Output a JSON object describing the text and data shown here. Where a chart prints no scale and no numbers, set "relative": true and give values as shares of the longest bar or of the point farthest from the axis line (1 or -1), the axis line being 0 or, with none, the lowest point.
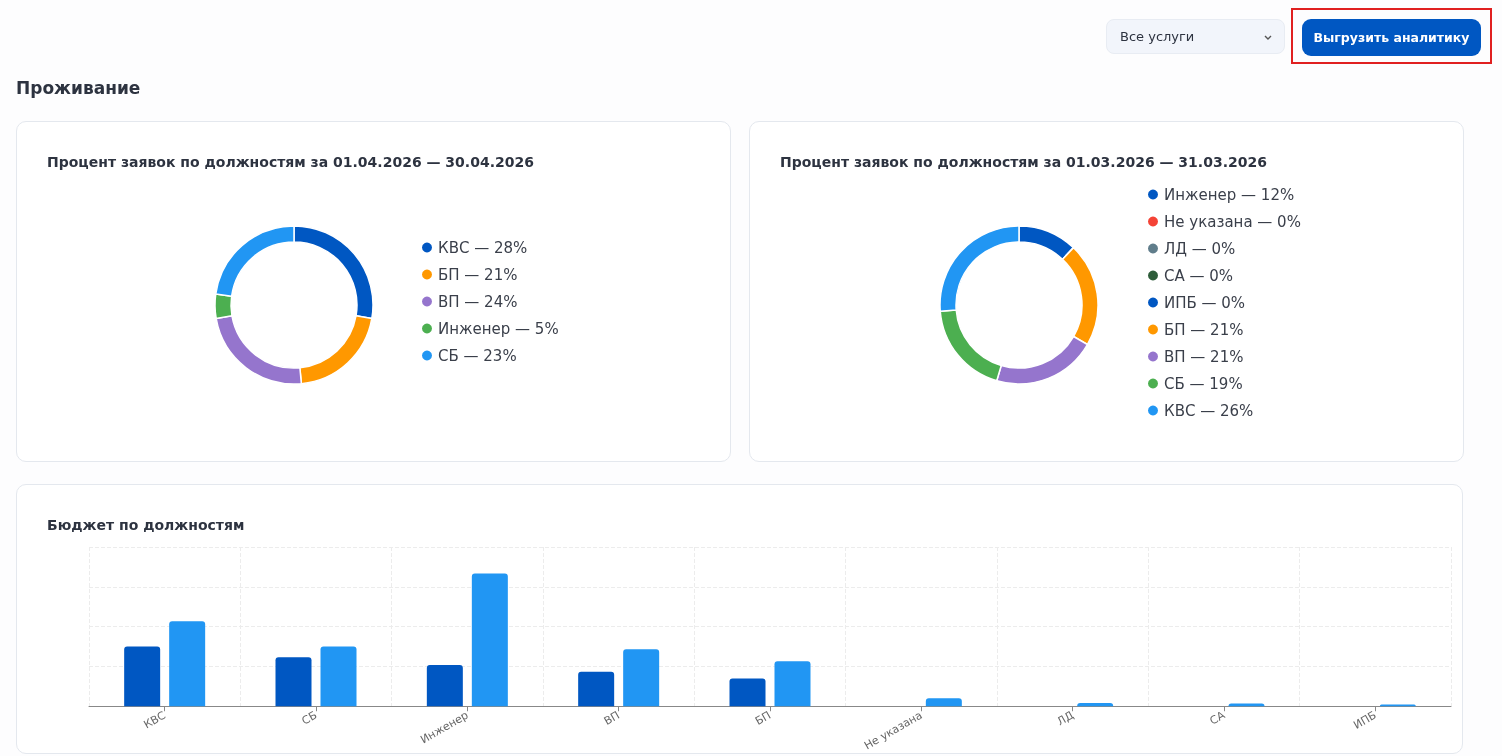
{
  "chart_data": [
    {
      "type": "other",
      "title": "Проживание",
      "annotations": [
        "Все услуги",
        "Выгрузить аналитику"
      ]
    },
    {
      "type": "donut",
      "title": "Процент заявок по должностям за 01.04.2026 — 30.04.2026",
      "legend": "right",
      "categories": [
        "КВС — 28%",
        "БП — 21%",
        "ВП — 24%",
        "Инженер — 5%",
        "СБ — 23%"
      ],
      "values": [
        28,
        21,
        24,
        5,
        23
      ],
      "colors": [
        "#0057c2",
        "#ff9800",
        "#9575cd",
        "#4caf50",
        "#2196f3"
      ]
    },
    {
      "type": "donut",
      "title": "Процент заявок по должностям за 01.03.2026 — 31.03.2026",
      "legend": "right",
      "categories": [
        "Инженер — 12%",
        "Не указана — 0%",
        "ЛД — 0%",
        "СА — 0%",
        "ИПБ — 0%",
        "БП — 21%",
        "ВП — 21%",
        "СБ — 19%",
        "КВС — 26%"
      ],
      "values": [
        12,
        0,
        0,
        0,
        0,
        21,
        21,
        19,
        26
      ],
      "colors": [
        "#0057c2",
        "#f44336",
        "#607d8b",
        "#2e5d3a",
        "#0057c2",
        "#ff9800",
        "#9575cd",
        "#4caf50",
        "#2196f3"
      ]
    },
    {
      "type": "bar",
      "title": "Бюджет по должностям",
      "relative": true,
      "grid": true,
      "legend": false,
      "categories": [
        "КВС",
        "СБ",
        "Инженер",
        "ВП",
        "БП",
        "Не указана",
        "ЛД",
        "СА",
        "ИПБ"
      ],
      "series": [
        {
          "color": "#0057c2",
          "values": [
            0.45,
            0.37,
            0.31,
            0.26,
            0.21,
            null,
            null,
            null,
            null
          ]
        },
        {
          "color": "#2196f3",
          "values": [
            0.64,
            0.45,
            1,
            0.43,
            0.34,
            0.06,
            0.025,
            0.02,
            0.013
          ]
        }
      ]
    }
  ]
}
